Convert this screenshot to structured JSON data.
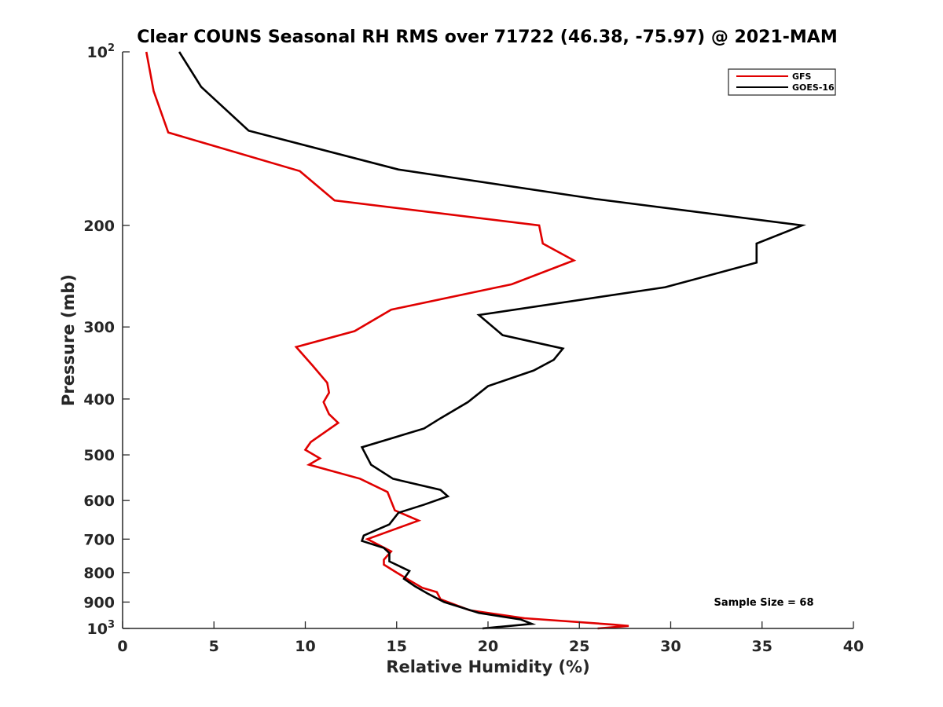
{
  "chart_data": {
    "type": "line",
    "title": "Clear COUNS Seasonal RH RMS over 71722 (46.38, -75.97) @ 2021-MAM",
    "xlabel": "Relative Humidity (%)",
    "ylabel": "Pressure (mb)",
    "xlim": [
      0,
      40
    ],
    "ylim": [
      100,
      1000
    ],
    "yscale": "log",
    "y_reversed": true,
    "grid": false,
    "legend_position": "top-right",
    "xticks": [
      0,
      5,
      10,
      15,
      20,
      25,
      30,
      35,
      40
    ],
    "xtick_labels": [
      "0",
      "5",
      "10",
      "15",
      "20",
      "25",
      "30",
      "35",
      "40"
    ],
    "yticks": [
      100,
      200,
      300,
      400,
      500,
      600,
      700,
      800,
      900,
      1000
    ],
    "ytick_labels": [
      {
        "base": "10",
        "exp": "2"
      },
      {
        "text": "200"
      },
      {
        "text": "300"
      },
      {
        "text": "400"
      },
      {
        "text": "500"
      },
      {
        "text": "600"
      },
      {
        "text": "700"
      },
      {
        "text": "800"
      },
      {
        "text": "900"
      },
      {
        "base": "10",
        "exp": "3"
      }
    ],
    "annotation": "Sample Size = 68",
    "series": [
      {
        "name": "GFS",
        "color": "#e00000",
        "points": [
          [
            1.3,
            100
          ],
          [
            1.7,
            117
          ],
          [
            2.5,
            138
          ],
          [
            9.7,
            161
          ],
          [
            11.6,
            181
          ],
          [
            22.8,
            200
          ],
          [
            23.0,
            215
          ],
          [
            24.7,
            230
          ],
          [
            21.3,
            253
          ],
          [
            14.7,
            280
          ],
          [
            12.7,
            305
          ],
          [
            9.5,
            325
          ],
          [
            10.4,
            350
          ],
          [
            11.2,
            375
          ],
          [
            11.3,
            390
          ],
          [
            11.0,
            405
          ],
          [
            11.3,
            425
          ],
          [
            11.8,
            440
          ],
          [
            10.3,
            475
          ],
          [
            10.0,
            490
          ],
          [
            10.8,
            507
          ],
          [
            10.2,
            520
          ],
          [
            13.0,
            550
          ],
          [
            14.5,
            580
          ],
          [
            14.9,
            624
          ],
          [
            16.2,
            650
          ],
          [
            13.4,
            700
          ],
          [
            14.7,
            735
          ],
          [
            14.3,
            760
          ],
          [
            14.3,
            775
          ],
          [
            15.0,
            800
          ],
          [
            15.7,
            825
          ],
          [
            16.4,
            850
          ],
          [
            17.2,
            865
          ],
          [
            17.4,
            890
          ],
          [
            19.0,
            930
          ],
          [
            22.0,
            960
          ],
          [
            26.9,
            985
          ],
          [
            27.7,
            990
          ],
          [
            26.0,
            1000
          ]
        ]
      },
      {
        "name": "GOES-16",
        "color": "#000000",
        "points": [
          [
            3.1,
            100
          ],
          [
            4.3,
            115
          ],
          [
            6.9,
            137
          ],
          [
            15.1,
            160
          ],
          [
            25.9,
            180
          ],
          [
            37.2,
            200
          ],
          [
            34.7,
            215
          ],
          [
            34.7,
            232
          ],
          [
            29.7,
            256
          ],
          [
            19.5,
            286
          ],
          [
            20.8,
            310
          ],
          [
            24.1,
            327
          ],
          [
            23.6,
            342
          ],
          [
            22.5,
            357
          ],
          [
            20.0,
            380
          ],
          [
            18.9,
            405
          ],
          [
            17.4,
            432
          ],
          [
            16.5,
            450
          ],
          [
            13.1,
            485
          ],
          [
            13.6,
            520
          ],
          [
            14.8,
            550
          ],
          [
            17.4,
            575
          ],
          [
            17.8,
            590
          ],
          [
            16.5,
            610
          ],
          [
            15.1,
            630
          ],
          [
            14.6,
            660
          ],
          [
            13.2,
            690
          ],
          [
            13.1,
            705
          ],
          [
            14.3,
            725
          ],
          [
            14.6,
            740
          ],
          [
            14.6,
            765
          ],
          [
            15.7,
            795
          ],
          [
            15.4,
            820
          ],
          [
            16.0,
            845
          ],
          [
            16.7,
            870
          ],
          [
            17.6,
            900
          ],
          [
            19.5,
            940
          ],
          [
            21.8,
            965
          ],
          [
            22.4,
            982
          ],
          [
            19.7,
            1000
          ]
        ]
      }
    ]
  }
}
